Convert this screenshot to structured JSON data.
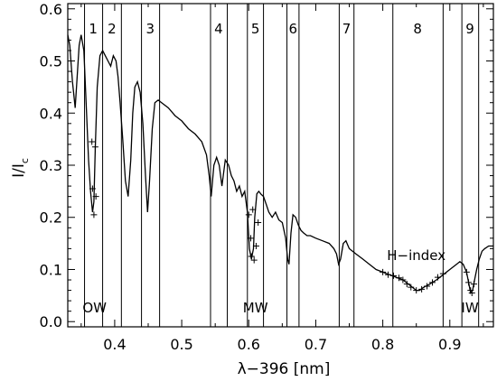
{
  "chart_data": {
    "type": "line",
    "xlabel": "λ−396 [nm]",
    "ylabel_main": "I/I",
    "ylabel_sub": "c",
    "xlim": [
      0.33,
      0.965
    ],
    "ylim": [
      -0.01,
      0.61
    ],
    "xticks": [
      {
        "value": 0.4,
        "label": "0.4"
      },
      {
        "value": 0.5,
        "label": "0.5"
      },
      {
        "value": 0.6,
        "label": "0.6"
      },
      {
        "value": 0.7,
        "label": "0.7"
      },
      {
        "value": 0.8,
        "label": "0.8"
      },
      {
        "value": 0.9,
        "label": "0.9"
      }
    ],
    "yticks": [
      {
        "value": 0.0,
        "label": "0.0"
      },
      {
        "value": 0.1,
        "label": "0.1"
      },
      {
        "value": 0.2,
        "label": "0.2"
      },
      {
        "value": 0.3,
        "label": "0.3"
      },
      {
        "value": 0.4,
        "label": "0.4"
      },
      {
        "value": 0.5,
        "label": "0.5"
      },
      {
        "value": 0.6,
        "label": "0.6"
      }
    ],
    "vlines": [
      0.355,
      0.382,
      0.41,
      0.44,
      0.467,
      0.543,
      0.568,
      0.598,
      0.622,
      0.657,
      0.675,
      0.735,
      0.757,
      0.815,
      0.89,
      0.918,
      0.943
    ],
    "band_labels": [
      {
        "label": "1",
        "x": 0.368
      },
      {
        "label": "2",
        "x": 0.396
      },
      {
        "label": "3",
        "x": 0.453
      },
      {
        "label": "4",
        "x": 0.555
      },
      {
        "label": "5",
        "x": 0.61
      },
      {
        "label": "6",
        "x": 0.666
      },
      {
        "label": "7",
        "x": 0.746
      },
      {
        "label": "8",
        "x": 0.852
      },
      {
        "label": "9",
        "x": 0.93
      }
    ],
    "annotations": [
      {
        "label": "OW",
        "x": 0.37,
        "y": 0.018
      },
      {
        "label": "MW",
        "x": 0.61,
        "y": 0.018
      },
      {
        "label": "IW",
        "x": 0.93,
        "y": 0.018
      },
      {
        "label": "H−index",
        "x": 0.85,
        "y": 0.118
      }
    ],
    "series": [
      {
        "x": [
          0.33,
          0.333,
          0.337,
          0.341,
          0.344,
          0.347,
          0.35,
          0.354,
          0.358,
          0.361,
          0.364,
          0.367,
          0.369,
          0.371,
          0.374,
          0.378,
          0.382,
          0.386,
          0.39,
          0.394,
          0.398,
          0.402,
          0.405,
          0.408,
          0.412,
          0.416,
          0.42,
          0.424,
          0.427,
          0.43,
          0.434,
          0.438,
          0.442,
          0.446,
          0.449,
          0.452,
          0.456,
          0.46,
          0.465,
          0.47,
          0.48,
          0.49,
          0.5,
          0.51,
          0.52,
          0.53,
          0.537,
          0.541,
          0.544,
          0.548,
          0.552,
          0.556,
          0.56,
          0.565,
          0.57,
          0.574,
          0.578,
          0.582,
          0.586,
          0.59,
          0.594,
          0.598,
          0.601,
          0.604,
          0.607,
          0.609,
          0.612,
          0.615,
          0.618,
          0.622,
          0.626,
          0.63,
          0.635,
          0.64,
          0.645,
          0.65,
          0.655,
          0.658,
          0.66,
          0.663,
          0.666,
          0.67,
          0.674,
          0.678,
          0.682,
          0.687,
          0.692,
          0.7,
          0.71,
          0.72,
          0.727,
          0.731,
          0.734,
          0.737,
          0.741,
          0.745,
          0.75,
          0.76,
          0.77,
          0.78,
          0.79,
          0.8,
          0.81,
          0.82,
          0.83,
          0.84,
          0.85,
          0.855,
          0.86,
          0.87,
          0.88,
          0.89,
          0.9,
          0.91,
          0.915,
          0.92,
          0.925,
          0.928,
          0.931,
          0.934,
          0.937,
          0.94,
          0.944,
          0.948,
          0.952,
          0.958,
          0.965
        ],
        "y": [
          0.55,
          0.53,
          0.46,
          0.41,
          0.47,
          0.53,
          0.55,
          0.52,
          0.4,
          0.31,
          0.25,
          0.21,
          0.23,
          0.33,
          0.45,
          0.51,
          0.52,
          0.51,
          0.5,
          0.49,
          0.51,
          0.5,
          0.47,
          0.42,
          0.35,
          0.27,
          0.24,
          0.31,
          0.4,
          0.45,
          0.46,
          0.44,
          0.38,
          0.28,
          0.21,
          0.27,
          0.37,
          0.42,
          0.425,
          0.42,
          0.41,
          0.395,
          0.385,
          0.37,
          0.36,
          0.345,
          0.32,
          0.28,
          0.24,
          0.3,
          0.315,
          0.3,
          0.26,
          0.31,
          0.3,
          0.28,
          0.27,
          0.25,
          0.26,
          0.24,
          0.25,
          0.21,
          0.14,
          0.12,
          0.14,
          0.2,
          0.245,
          0.25,
          0.245,
          0.24,
          0.225,
          0.21,
          0.2,
          0.21,
          0.195,
          0.19,
          0.16,
          0.12,
          0.11,
          0.17,
          0.205,
          0.2,
          0.185,
          0.175,
          0.17,
          0.165,
          0.165,
          0.16,
          0.155,
          0.15,
          0.14,
          0.13,
          0.11,
          0.12,
          0.15,
          0.155,
          0.14,
          0.13,
          0.12,
          0.11,
          0.1,
          0.095,
          0.09,
          0.085,
          0.08,
          0.07,
          0.06,
          0.06,
          0.065,
          0.072,
          0.08,
          0.09,
          0.1,
          0.11,
          0.115,
          0.11,
          0.095,
          0.075,
          0.055,
          0.06,
          0.08,
          0.1,
          0.12,
          0.135,
          0.14,
          0.145,
          0.145
        ]
      }
    ],
    "markers": [
      {
        "x": 0.366,
        "y": 0.345
      },
      {
        "x": 0.371,
        "y": 0.335
      },
      {
        "x": 0.367,
        "y": 0.255
      },
      {
        "x": 0.372,
        "y": 0.24
      },
      {
        "x": 0.369,
        "y": 0.205
      },
      {
        "x": 0.6,
        "y": 0.205
      },
      {
        "x": 0.606,
        "y": 0.215
      },
      {
        "x": 0.614,
        "y": 0.19
      },
      {
        "x": 0.603,
        "y": 0.16
      },
      {
        "x": 0.611,
        "y": 0.145
      },
      {
        "x": 0.604,
        "y": 0.125
      },
      {
        "x": 0.608,
        "y": 0.118
      },
      {
        "x": 0.8,
        "y": 0.095
      },
      {
        "x": 0.808,
        "y": 0.09
      },
      {
        "x": 0.816,
        "y": 0.088
      },
      {
        "x": 0.824,
        "y": 0.084
      },
      {
        "x": 0.83,
        "y": 0.08
      },
      {
        "x": 0.836,
        "y": 0.072
      },
      {
        "x": 0.842,
        "y": 0.066
      },
      {
        "x": 0.85,
        "y": 0.06
      },
      {
        "x": 0.858,
        "y": 0.062
      },
      {
        "x": 0.866,
        "y": 0.068
      },
      {
        "x": 0.874,
        "y": 0.075
      },
      {
        "x": 0.882,
        "y": 0.085
      },
      {
        "x": 0.89,
        "y": 0.092
      },
      {
        "x": 0.925,
        "y": 0.095
      },
      {
        "x": 0.928,
        "y": 0.075
      },
      {
        "x": 0.931,
        "y": 0.06
      },
      {
        "x": 0.933,
        "y": 0.055
      },
      {
        "x": 0.936,
        "y": 0.072
      }
    ]
  }
}
